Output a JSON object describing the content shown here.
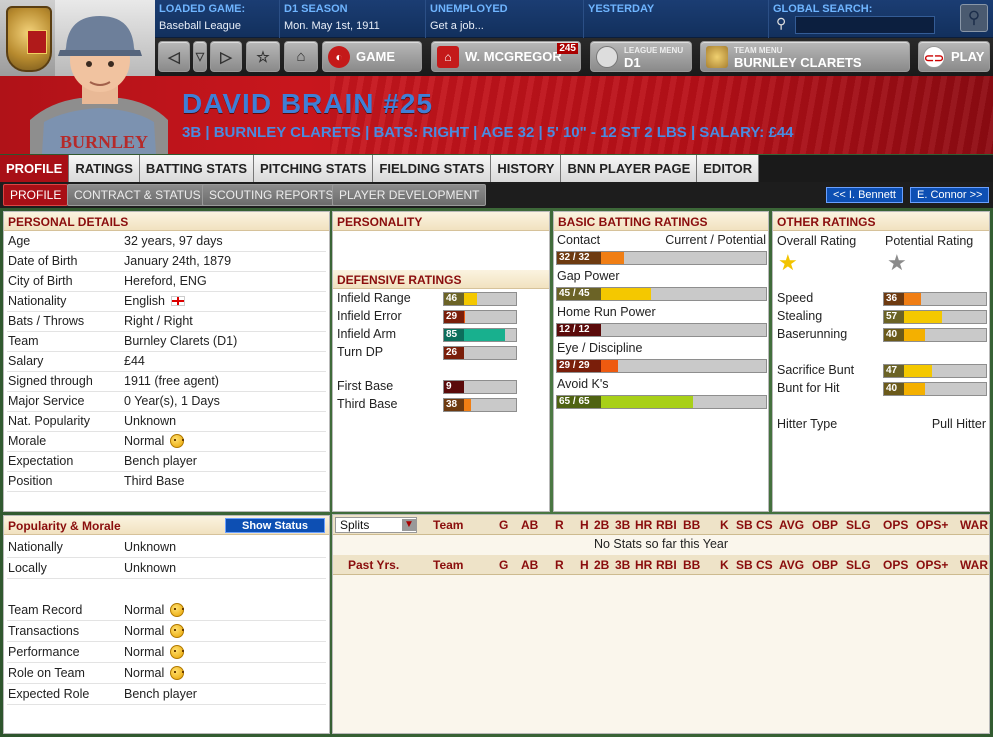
{
  "topbar": {
    "loaded_game_label": "LOADED GAME:",
    "loaded_game_value": "Baseball League",
    "season_label": "D1 SEASON",
    "season_value": "Mon. May 1st, 1911",
    "status_label": "UNEMPLOYED",
    "status_value": "Get a job...",
    "yesterday_label": "YESTERDAY",
    "search_label": "GLOBAL SEARCH:",
    "search_placeholder": ""
  },
  "nav": {
    "game_label": "GAME",
    "manager_label": "W. MCGREGOR",
    "manager_badge": "245",
    "league_menu_label": "LEAGUE MENU",
    "league_menu_value": "D1",
    "team_menu_label": "TEAM MENU",
    "team_menu_value": "BURNLEY CLARETS",
    "play_label": "PLAY"
  },
  "player": {
    "name": "DAVID BRAIN  #25",
    "subtitle": "3B | BURNLEY CLARETS | BATS: RIGHT | AGE 32 | 5' 10\" - 12 ST 2 LBS | SALARY: £44",
    "jersey_text": "BURNLEY"
  },
  "tabs": [
    "PROFILE",
    "RATINGS",
    "BATTING STATS",
    "PITCHING STATS",
    "FIELDING STATS",
    "HISTORY",
    "BNN PLAYER PAGE",
    "EDITOR"
  ],
  "subtabs": [
    "PROFILE",
    "CONTRACT & STATUS",
    "SCOUTING REPORTS",
    "PLAYER DEVELOPMENT"
  ],
  "prev_player": "<< I. Bennett",
  "next_player": "E. Connor >>",
  "personal": {
    "title": "PERSONAL DETAILS",
    "rows": [
      {
        "k": "Age",
        "v": "32 years, 97 days"
      },
      {
        "k": "Date of Birth",
        "v": "January 24th, 1879"
      },
      {
        "k": "City of Birth",
        "v": "Hereford, ENG"
      },
      {
        "k": "Nationality",
        "v": "English"
      },
      {
        "k": "Bats / Throws",
        "v": "Right / Right"
      },
      {
        "k": "Team",
        "v": "Burnley Clarets (D1)"
      },
      {
        "k": "Salary",
        "v": "£44"
      },
      {
        "k": "Signed through",
        "v": "1911 (free agent)"
      },
      {
        "k": "Major Service",
        "v": "0 Year(s), 1 Days"
      },
      {
        "k": "Nat. Popularity",
        "v": "Unknown"
      },
      {
        "k": "Morale",
        "v": "Normal"
      },
      {
        "k": "Expectation",
        "v": "Bench player"
      },
      {
        "k": "Position",
        "v": "Third Base"
      }
    ]
  },
  "popularity": {
    "title": "Popularity & Morale",
    "show_status": "Show Status",
    "rows": [
      {
        "k": "Nationally",
        "v": "Unknown"
      },
      {
        "k": "Locally",
        "v": "Unknown"
      },
      {
        "k": "Team Record",
        "v": "Normal"
      },
      {
        "k": "Transactions",
        "v": "Normal"
      },
      {
        "k": "Performance",
        "v": "Normal"
      },
      {
        "k": "Role on Team",
        "v": "Normal"
      },
      {
        "k": "Expected Role",
        "v": "Bench player"
      }
    ]
  },
  "personality": {
    "title": "PERSONALITY"
  },
  "defensive": {
    "title": "DEFENSIVE RATINGS",
    "rows": [
      {
        "k": "Infield Range",
        "val": "46",
        "pct": 0.46,
        "color": "#f4c800",
        "numbg": "#6b6326"
      },
      {
        "k": "Infield Error",
        "val": "29",
        "pct": 0.29,
        "color": "#ee5a10",
        "numbg": "#7a1e0a"
      },
      {
        "k": "Infield Arm",
        "val": "85",
        "pct": 0.85,
        "color": "#18b08e",
        "numbg": "#0c6e5c"
      },
      {
        "k": "Turn DP",
        "val": "26",
        "pct": 0.26,
        "color": "#ee3a10",
        "numbg": "#7a1e0a"
      },
      {
        "k": "First Base",
        "val": "9",
        "pct": 0.09,
        "color": "#a4101c",
        "numbg": "#5a0a0a"
      },
      {
        "k": "Third Base",
        "val": "38",
        "pct": 0.38,
        "color": "#f07e14",
        "numbg": "#6d3a10"
      }
    ]
  },
  "batting": {
    "title": "BASIC BATTING RATINGS",
    "col_header": "Current / Potential",
    "rows": [
      {
        "k": "Contact",
        "val": "32 / 32",
        "pct": 0.32,
        "color": "#f07e14",
        "numbg": "#6d3a10"
      },
      {
        "k": "Gap Power",
        "val": "45 / 45",
        "pct": 0.45,
        "color": "#f4c800",
        "numbg": "#6b6326"
      },
      {
        "k": "Home Run Power",
        "val": "12 / 12",
        "pct": 0.12,
        "color": "#c4101c",
        "numbg": "#5a0a0a"
      },
      {
        "k": "Eye / Discipline",
        "val": "29 / 29",
        "pct": 0.29,
        "color": "#ee5a10",
        "numbg": "#7a1e0a"
      },
      {
        "k": "Avoid K's",
        "val": "65 / 65",
        "pct": 0.65,
        "color": "#a8d018",
        "numbg": "#4f6312"
      }
    ]
  },
  "other": {
    "title": "OTHER RATINGS",
    "overall_label": "Overall Rating",
    "potential_label": "Potential Rating",
    "rows": [
      {
        "k": "Speed",
        "val": "36",
        "pct": 0.36,
        "color": "#f07e14",
        "numbg": "#6d3a10"
      },
      {
        "k": "Stealing",
        "val": "57",
        "pct": 0.57,
        "color": "#f4c800",
        "numbg": "#6b6326"
      },
      {
        "k": "Baserunning",
        "val": "40",
        "pct": 0.4,
        "color": "#f4b000",
        "numbg": "#6b5a1a"
      },
      {
        "k": "Sacrifice Bunt",
        "val": "47",
        "pct": 0.47,
        "color": "#f4c800",
        "numbg": "#6b6326"
      },
      {
        "k": "Bunt for Hit",
        "val": "40",
        "pct": 0.4,
        "color": "#f4b000",
        "numbg": "#6b5a1a"
      }
    ],
    "hitter_type_label": "Hitter Type",
    "hitter_type_value": "Pull Hitter"
  },
  "stats": {
    "splits_label": "Splits",
    "columns": [
      "Team",
      "G",
      "AB",
      "R",
      "H",
      "2B",
      "3B",
      "HR",
      "RBI",
      "BB",
      "K",
      "SB",
      "CS",
      "AVG",
      "OBP",
      "SLG",
      "OPS",
      "OPS+",
      "WAR"
    ],
    "past_label": "Past Yrs.",
    "no_stats": "No Stats so far this Year"
  }
}
